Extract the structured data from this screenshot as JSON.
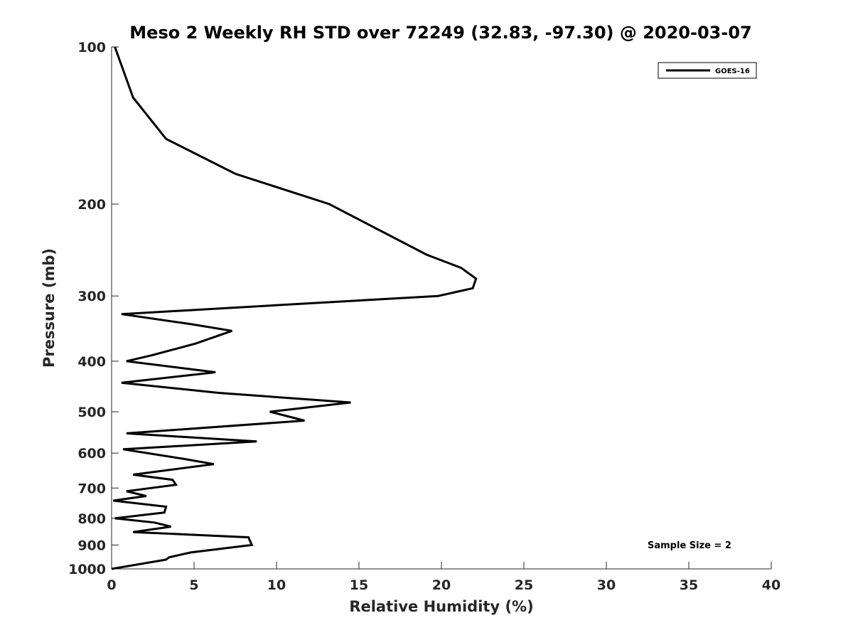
{
  "colors": {
    "line": "#000000",
    "axis": "#262626",
    "background": "#ffffff"
  },
  "chart_data": {
    "type": "line",
    "title": "Meso 2 Weekly RH STD over 72249 (32.83, -97.30) @ 2020-03-07",
    "xlabel": "Relative Humidity (%)",
    "ylabel": "Pressure (mb)",
    "xlim": [
      0,
      40
    ],
    "ylim": [
      100,
      1000
    ],
    "y_scale": "log",
    "y_reversed": true,
    "x_ticks": [
      "0",
      "5",
      "10",
      "15",
      "20",
      "25",
      "30",
      "35",
      "40"
    ],
    "y_ticks": [
      "100",
      "200",
      "300",
      "400",
      "500",
      "600",
      "700",
      "800",
      "900",
      "1000"
    ],
    "grid": false,
    "legend_position": "top-right",
    "annotation": "Sample Size = 2",
    "series": [
      {
        "name": "GOES-16",
        "points": [
          [
            0.2,
            100
          ],
          [
            1.3,
            125
          ],
          [
            3.3,
            150
          ],
          [
            7.5,
            175
          ],
          [
            13.2,
            200
          ],
          [
            19.1,
            250
          ],
          [
            21.2,
            265
          ],
          [
            22.1,
            278
          ],
          [
            21.9,
            290
          ],
          [
            19.8,
            300
          ],
          [
            0.6,
            325
          ],
          [
            4.9,
            340
          ],
          [
            7.3,
            350
          ],
          [
            5.1,
            370
          ],
          [
            2.4,
            390
          ],
          [
            0.9,
            400
          ],
          [
            6.3,
            420
          ],
          [
            0.6,
            440
          ],
          [
            6.5,
            460
          ],
          [
            14.5,
            480
          ],
          [
            9.6,
            500
          ],
          [
            11.7,
            520
          ],
          [
            0.9,
            550
          ],
          [
            8.8,
            570
          ],
          [
            0.7,
            590
          ],
          [
            4.3,
            615
          ],
          [
            6.2,
            630
          ],
          [
            1.3,
            660
          ],
          [
            3.7,
            675
          ],
          [
            3.9,
            690
          ],
          [
            0.9,
            710
          ],
          [
            2.1,
            725
          ],
          [
            0.1,
            740
          ],
          [
            3.3,
            760
          ],
          [
            3.2,
            780
          ],
          [
            0.2,
            800
          ],
          [
            2.6,
            815
          ],
          [
            3.6,
            830
          ],
          [
            1.3,
            850
          ],
          [
            8.3,
            870
          ],
          [
            8.5,
            900
          ],
          [
            4.8,
            930
          ],
          [
            3.5,
            950
          ],
          [
            3.3,
            960
          ],
          [
            0.0,
            1000
          ]
        ]
      }
    ]
  }
}
